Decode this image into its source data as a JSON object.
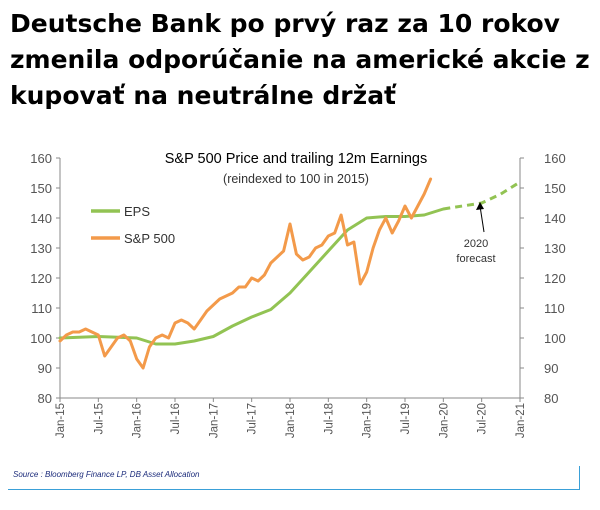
{
  "headline": "Deutsche Bank po prvý raz za 10 rokov zmenila odporúčanie na americké akcie z kupovať na neutrálne držať",
  "source": "Source : Bloomberg Finance LP, DB Asset Allocation",
  "chart_data": {
    "type": "line",
    "title": "S&P 500 Price and trailing 12m Earnings",
    "subtitle": "(reindexed to 100 in 2015)",
    "xlabel": "",
    "ylabel": "",
    "ylim": [
      80,
      160
    ],
    "yticks": [
      80,
      90,
      100,
      110,
      120,
      130,
      140,
      150,
      160
    ],
    "y_axis_sides": "both",
    "xlim": [
      "2015-01",
      "2021-01"
    ],
    "xticks": [
      "Jan-15",
      "Jul-15",
      "Jan-16",
      "Jul-16",
      "Jan-17",
      "Jul-17",
      "Jan-18",
      "Jul-18",
      "Jan-19",
      "Jul-19",
      "Jan-20",
      "Jul-20",
      "Jan-21"
    ],
    "grid": false,
    "legend_position": "top-left",
    "annotation": "2020\nforecast",
    "series": [
      {
        "name": "EPS",
        "color": "#92c353",
        "style": "solid",
        "x": [
          "2015-01",
          "2015-07",
          "2016-01",
          "2016-04",
          "2016-07",
          "2016-10",
          "2017-01",
          "2017-04",
          "2017-07",
          "2017-10",
          "2018-01",
          "2018-04",
          "2018-07",
          "2018-10",
          "2019-01",
          "2019-04",
          "2019-07",
          "2019-10",
          "2020-01"
        ],
        "values": [
          100,
          100.5,
          100,
          98,
          98,
          99,
          100.5,
          104,
          107,
          109.5,
          115,
          122,
          129,
          136,
          140,
          140.5,
          140.5,
          141,
          143
        ]
      },
      {
        "name": "",
        "color": "#92c353",
        "style": "dashed",
        "x": [
          "2020-01",
          "2020-04",
          "2020-07",
          "2020-10",
          "2021-01"
        ],
        "values": [
          143,
          144,
          145,
          148,
          152
        ]
      },
      {
        "name": "S&P 500",
        "color": "#f39a4a",
        "style": "solid",
        "x": [
          "2015-01",
          "2015-02",
          "2015-03",
          "2015-04",
          "2015-05",
          "2015-06",
          "2015-07",
          "2015-08",
          "2015-09",
          "2015-10",
          "2015-11",
          "2015-12",
          "2016-01",
          "2016-02",
          "2016-03",
          "2016-04",
          "2016-05",
          "2016-06",
          "2016-07",
          "2016-08",
          "2016-09",
          "2016-10",
          "2016-11",
          "2016-12",
          "2017-01",
          "2017-02",
          "2017-03",
          "2017-04",
          "2017-05",
          "2017-06",
          "2017-07",
          "2017-08",
          "2017-09",
          "2017-10",
          "2017-11",
          "2017-12",
          "2018-01",
          "2018-02",
          "2018-03",
          "2018-04",
          "2018-05",
          "2018-06",
          "2018-07",
          "2018-08",
          "2018-09",
          "2018-10",
          "2018-11",
          "2018-12",
          "2019-01",
          "2019-02",
          "2019-03",
          "2019-04",
          "2019-05",
          "2019-06",
          "2019-07",
          "2019-08",
          "2019-09",
          "2019-10",
          "2019-11"
        ],
        "values": [
          99,
          101,
          102,
          102,
          103,
          102,
          101,
          94,
          97,
          100,
          101,
          99,
          93,
          90,
          97,
          100,
          101,
          100,
          105,
          106,
          105,
          103,
          106,
          109,
          111,
          113,
          114,
          115,
          117,
          117,
          120,
          119,
          121,
          125,
          127,
          129,
          138,
          128,
          126,
          127,
          130,
          131,
          134,
          135,
          141,
          131,
          132,
          118,
          122,
          130,
          136,
          140,
          135,
          139,
          144,
          140,
          144,
          148,
          153
        ]
      }
    ]
  }
}
